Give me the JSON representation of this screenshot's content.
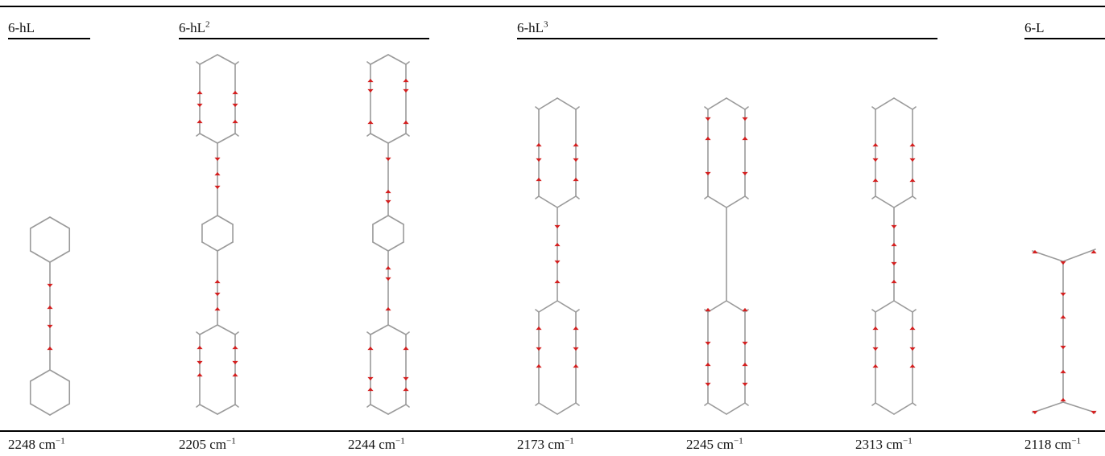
{
  "groups": [
    {
      "base": "6-hL",
      "sup": ""
    },
    {
      "base": "6-hL",
      "sup": "2"
    },
    {
      "base": "6-hL",
      "sup": "3"
    },
    {
      "base": "6-L",
      "sup": ""
    }
  ],
  "frequencies": [
    {
      "value": "2248 cm",
      "exp": "−1"
    },
    {
      "value": "2205 cm",
      "exp": "−1"
    },
    {
      "value": "2244 cm",
      "exp": "−1"
    },
    {
      "value": "2173 cm",
      "exp": "−1"
    },
    {
      "value": "2245 cm",
      "exp": "−1"
    },
    {
      "value": "2313 cm",
      "exp": "−1"
    },
    {
      "value": "2118 cm",
      "exp": "−1"
    }
  ],
  "colors": {
    "bond": "#9a9a9a",
    "arrow": "#d42020",
    "rule": "#000000"
  }
}
